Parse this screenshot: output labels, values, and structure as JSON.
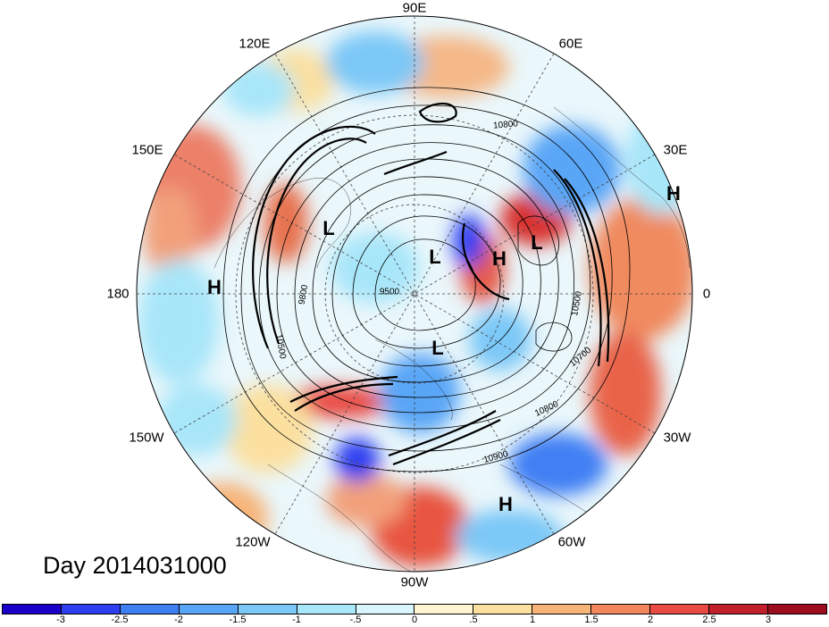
{
  "title": "Day 2014031000",
  "map": {
    "projection": "north polar stereographic",
    "longitude_labels": [
      "90E",
      "60E",
      "30E",
      "0",
      "30W",
      "60W",
      "90W",
      "120W",
      "150W",
      "180",
      "150E",
      "120E"
    ]
  },
  "pressure_centers": [
    {
      "label": "H",
      "region": "east-30E"
    },
    {
      "label": "H",
      "region": "dateline"
    },
    {
      "label": "H",
      "region": "north-atlantic"
    },
    {
      "label": "H",
      "region": "europe"
    },
    {
      "label": "L",
      "region": "east-asia"
    },
    {
      "label": "L",
      "region": "pole"
    },
    {
      "label": "L",
      "region": "scandinavia"
    },
    {
      "label": "L",
      "region": "canada"
    }
  ],
  "contour_labels": [
    "10800",
    "9800",
    "9500",
    "10500",
    "10500",
    "10700",
    "10800",
    "10900"
  ],
  "colorbar": {
    "ticks": [
      "-3",
      "-2.5",
      "-2",
      "-1.5",
      "-1",
      "-.5",
      "0",
      ".5",
      "1",
      "1.5",
      "2",
      "2.5",
      "3"
    ],
    "colors": [
      "#1a00c8",
      "#2d3ff0",
      "#3f7ff4",
      "#5aa6f6",
      "#7cc8f7",
      "#a8e6f9",
      "#d9f6fc",
      "#fff6d1",
      "#fbe0a0",
      "#f7b478",
      "#f2865c",
      "#e94a42",
      "#c21f2c",
      "#9c0d1e"
    ]
  }
}
